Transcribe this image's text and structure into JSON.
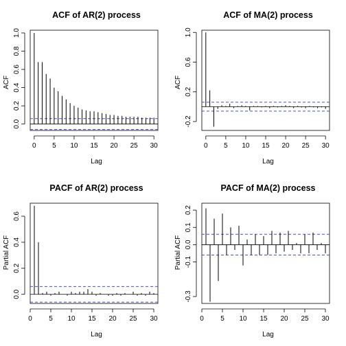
{
  "chart_data": [
    {
      "type": "bar",
      "title": "ACF of AR(2) process",
      "xlabel": "Lag",
      "ylabel": "ACF",
      "xlim": [
        -1,
        31
      ],
      "ylim": [
        -0.07,
        1.03
      ],
      "xticks": [
        0,
        5,
        10,
        15,
        20,
        25,
        30
      ],
      "yticks": [
        0.0,
        0.2,
        0.4,
        0.6,
        0.8,
        1.0
      ],
      "ytick_labels": [
        "0.0",
        "0.2",
        "0.4",
        "0.6",
        "0.8",
        "1.0"
      ],
      "x": [
        0,
        1,
        2,
        3,
        4,
        5,
        6,
        7,
        8,
        9,
        10,
        11,
        12,
        13,
        14,
        15,
        16,
        17,
        18,
        19,
        20,
        21,
        22,
        23,
        24,
        25,
        26,
        27,
        28,
        29,
        30
      ],
      "values": [
        1.0,
        0.68,
        0.68,
        0.55,
        0.5,
        0.4,
        0.36,
        0.31,
        0.27,
        0.23,
        0.2,
        0.18,
        0.16,
        0.15,
        0.14,
        0.14,
        0.13,
        0.12,
        0.11,
        0.1,
        0.1,
        0.09,
        0.09,
        0.08,
        0.08,
        0.08,
        0.08,
        0.07,
        0.07,
        0.07,
        0.07
      ],
      "conf_limit": 0.06,
      "colors": {
        "bars": "#000000",
        "conf": "#4c4cdc"
      }
    },
    {
      "type": "bar",
      "title": "ACF of MA(2) process",
      "xlabel": "Lag",
      "ylabel": "ACF",
      "xlim": [
        -1,
        31
      ],
      "ylim": [
        -0.32,
        1.03
      ],
      "xticks": [
        0,
        5,
        10,
        15,
        20,
        25,
        30
      ],
      "yticks": [
        -0.2,
        0.2,
        0.6,
        1.0
      ],
      "ytick_labels": [
        "-0.2",
        "0.2",
        "0.6",
        "1.0"
      ],
      "x": [
        0,
        1,
        2,
        3,
        4,
        5,
        6,
        7,
        8,
        9,
        10,
        11,
        12,
        13,
        14,
        15,
        16,
        17,
        18,
        19,
        20,
        21,
        22,
        23,
        24,
        25,
        26,
        27,
        28,
        29,
        30
      ],
      "values": [
        1.0,
        0.22,
        -0.27,
        -0.03,
        0.02,
        0.01,
        0.04,
        -0.02,
        0.01,
        0.02,
        0.01,
        -0.05,
        0.01,
        0.01,
        -0.01,
        0.01,
        -0.02,
        0.01,
        -0.01,
        0.01,
        0.02,
        0.01,
        -0.02,
        0.01,
        -0.01,
        -0.02,
        0.01,
        -0.01,
        -0.02,
        -0.01,
        -0.03
      ],
      "conf_limit": 0.06,
      "colors": {
        "bars": "#000000",
        "conf": "#4c4cdc"
      }
    },
    {
      "type": "bar",
      "title": "PACF of AR(2) process",
      "xlabel": "Lag",
      "ylabel": "Partial ACF",
      "xlim": [
        0,
        31
      ],
      "ylim": [
        -0.07,
        0.7
      ],
      "xticks": [
        0,
        5,
        10,
        15,
        20,
        25,
        30
      ],
      "yticks": [
        0.0,
        0.2,
        0.4,
        0.6
      ],
      "ytick_labels": [
        "0.0",
        "0.2",
        "0.4",
        "0.6"
      ],
      "x": [
        1,
        2,
        3,
        4,
        5,
        6,
        7,
        8,
        9,
        10,
        11,
        12,
        13,
        14,
        15,
        16,
        17,
        18,
        19,
        20,
        21,
        22,
        23,
        24,
        25,
        26,
        27,
        28,
        29,
        30
      ],
      "values": [
        0.68,
        0.4,
        0.01,
        0.02,
        -0.01,
        0.01,
        0.02,
        0.0,
        -0.01,
        0.02,
        0.01,
        0.02,
        0.02,
        0.04,
        0.02,
        -0.01,
        0.01,
        0.0,
        -0.01,
        -0.01,
        0.01,
        -0.01,
        0.01,
        0.0,
        0.02,
        -0.01,
        0.01,
        -0.01,
        0.02,
        0.01
      ],
      "conf_limit": 0.06,
      "colors": {
        "bars": "#000000",
        "conf": "#4c4cdc"
      }
    },
    {
      "type": "bar",
      "title": "PACF of MA(2) process",
      "xlabel": "Lag",
      "ylabel": "Partial ACF",
      "xlim": [
        0,
        31
      ],
      "ylim": [
        -0.34,
        0.24
      ],
      "xticks": [
        0,
        5,
        10,
        15,
        20,
        25,
        30
      ],
      "yticks": [
        -0.3,
        -0.1,
        0.0,
        0.1,
        0.2
      ],
      "ytick_labels": [
        "-0.3",
        "-0.1",
        "0.0",
        "0.1",
        "0.2"
      ],
      "x": [
        1,
        2,
        3,
        4,
        5,
        6,
        7,
        8,
        9,
        10,
        11,
        12,
        13,
        14,
        15,
        16,
        17,
        18,
        19,
        20,
        21,
        22,
        23,
        24,
        25,
        26,
        27,
        28,
        29,
        30
      ],
      "values": [
        0.21,
        -0.33,
        0.15,
        -0.21,
        0.18,
        -0.06,
        0.1,
        -0.03,
        0.11,
        -0.12,
        0.03,
        -0.06,
        0.06,
        -0.06,
        0.05,
        -0.06,
        0.08,
        -0.05,
        0.07,
        -0.04,
        0.08,
        -0.03,
        0.01,
        -0.05,
        0.06,
        -0.05,
        0.07,
        -0.03,
        0.01,
        -0.05
      ],
      "conf_limit": 0.06,
      "colors": {
        "bars": "#000000",
        "conf": "#4c4cdc"
      }
    }
  ]
}
